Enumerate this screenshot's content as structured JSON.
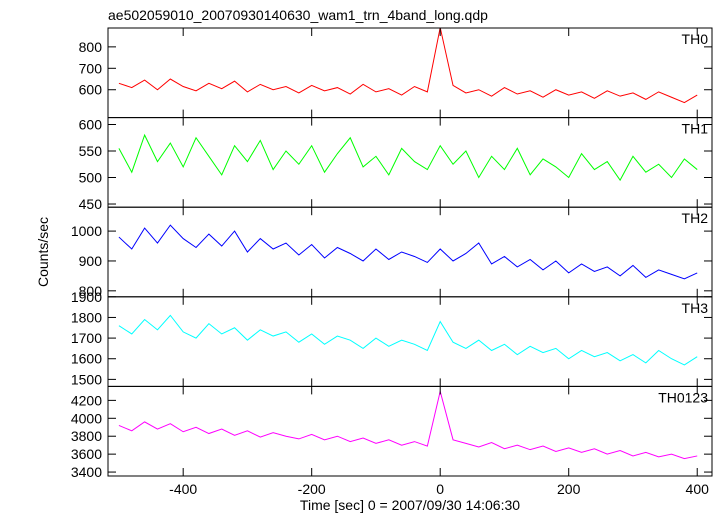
{
  "chart_data": {
    "type": "line",
    "title": "ae502059010_20070930140630_wam1_trn_4band_long.qdp",
    "xlabel": "Time [sec] 0 = 2007/09/30 14:06:30",
    "ylabel": "Counts/sec",
    "xlim": [
      -517,
      423
    ],
    "xticks": [
      -400,
      -200,
      0,
      200,
      400
    ],
    "x": [
      -500,
      -480,
      -460,
      -440,
      -420,
      -400,
      -380,
      -360,
      -340,
      -320,
      -300,
      -280,
      -260,
      -240,
      -220,
      -200,
      -180,
      -160,
      -140,
      -120,
      -100,
      -80,
      -60,
      -40,
      -20,
      0,
      20,
      40,
      60,
      80,
      100,
      120,
      140,
      160,
      180,
      200,
      220,
      240,
      260,
      280,
      300,
      320,
      340,
      360,
      380,
      400
    ],
    "series": [
      {
        "name": "TH0",
        "color": "#ff0000",
        "ylim": [
          470,
          888
        ],
        "yticks": [
          600,
          700,
          800
        ],
        "values": [
          630,
          610,
          645,
          600,
          650,
          615,
          595,
          630,
          605,
          640,
          590,
          625,
          600,
          615,
          585,
          620,
          595,
          610,
          580,
          625,
          590,
          605,
          575,
          615,
          590,
          890,
          620,
          585,
          600,
          570,
          610,
          580,
          595,
          565,
          600,
          575,
          590,
          560,
          595,
          570,
          585,
          555,
          590,
          565,
          540,
          575
        ]
      },
      {
        "name": "TH1",
        "color": "#00ff00",
        "ylim": [
          444,
          613
        ],
        "yticks": [
          450,
          500,
          550,
          600
        ],
        "values": [
          555,
          510,
          580,
          530,
          565,
          520,
          575,
          540,
          505,
          560,
          530,
          570,
          515,
          550,
          525,
          560,
          510,
          545,
          575,
          520,
          540,
          505,
          555,
          530,
          515,
          560,
          525,
          550,
          500,
          540,
          515,
          555,
          505,
          535,
          520,
          500,
          545,
          515,
          530,
          495,
          540,
          510,
          525,
          500,
          535,
          515
        ]
      },
      {
        "name": "TH2",
        "color": "#0000ff",
        "ylim": [
          780,
          1080
        ],
        "yticks": [
          800,
          900,
          1000
        ],
        "values": [
          980,
          940,
          1010,
          960,
          1020,
          975,
          945,
          990,
          950,
          1000,
          930,
          975,
          940,
          960,
          920,
          955,
          910,
          945,
          925,
          900,
          940,
          905,
          930,
          915,
          895,
          940,
          900,
          925,
          960,
          890,
          915,
          880,
          905,
          870,
          900,
          860,
          890,
          865,
          880,
          850,
          885,
          845,
          870,
          855,
          840,
          860
        ]
      },
      {
        "name": "TH3",
        "color": "#00ffff",
        "ylim": [
          1466,
          1900
        ],
        "yticks": [
          1500,
          1600,
          1700,
          1800,
          1900
        ],
        "values": [
          1760,
          1720,
          1790,
          1740,
          1810,
          1730,
          1700,
          1770,
          1720,
          1750,
          1690,
          1740,
          1710,
          1730,
          1680,
          1720,
          1670,
          1710,
          1690,
          1650,
          1700,
          1660,
          1690,
          1670,
          1640,
          1780,
          1680,
          1650,
          1690,
          1640,
          1670,
          1620,
          1660,
          1630,
          1650,
          1600,
          1640,
          1610,
          1630,
          1590,
          1620,
          1580,
          1640,
          1600,
          1570,
          1610
        ]
      },
      {
        "name": "TH0123",
        "color": "#ff00ff",
        "ylim": [
          3356,
          4356
        ],
        "yticks": [
          3400,
          3600,
          3800,
          4000,
          4200
        ],
        "values": [
          3920,
          3860,
          3960,
          3880,
          3940,
          3850,
          3900,
          3830,
          3880,
          3810,
          3860,
          3790,
          3840,
          3800,
          3770,
          3820,
          3760,
          3800,
          3740,
          3780,
          3720,
          3760,
          3700,
          3740,
          3690,
          4300,
          3760,
          3720,
          3680,
          3730,
          3660,
          3700,
          3650,
          3690,
          3630,
          3670,
          3620,
          3660,
          3600,
          3640,
          3580,
          3620,
          3570,
          3600,
          3550,
          3580
        ]
      }
    ]
  }
}
